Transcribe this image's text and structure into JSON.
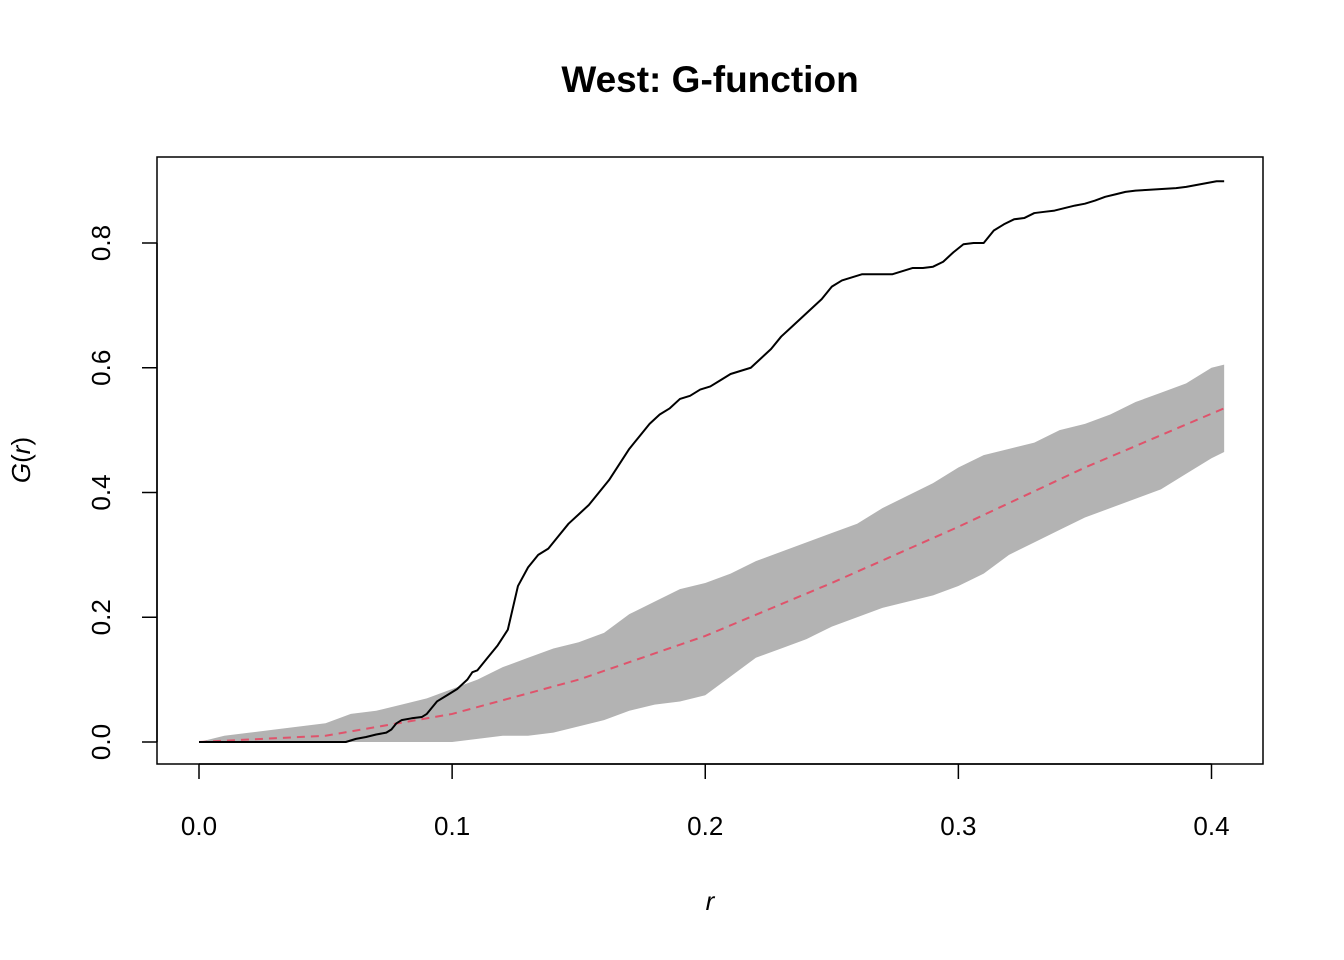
{
  "chart_data": {
    "type": "line",
    "title": "West: G-function",
    "xlabel": "r",
    "ylabel": "G(r)",
    "ylabel_parts": {
      "fn": "G",
      "open": "(",
      "arg": "r",
      "close": ")"
    },
    "xlim": [
      0,
      0.405
    ],
    "ylim": [
      0,
      0.9
    ],
    "xticks": [
      0.0,
      0.1,
      0.2,
      0.3,
      0.4
    ],
    "xtick_labels": [
      "0.0",
      "0.1",
      "0.2",
      "0.3",
      "0.4"
    ],
    "yticks": [
      0.0,
      0.2,
      0.4,
      0.6,
      0.8
    ],
    "ytick_labels": [
      "0.0",
      "0.2",
      "0.4",
      "0.6",
      "0.8"
    ],
    "grid": false,
    "legend": "none",
    "colors": {
      "observed": "#000000",
      "theoretical": "#DF536B",
      "envelope": "#B3B3B3",
      "axes": "#000000"
    },
    "series": [
      {
        "role": "observed",
        "style": "solid",
        "x": [
          0,
          0.02,
          0.04,
          0.058,
          0.062,
          0.066,
          0.07,
          0.074,
          0.076,
          0.078,
          0.08,
          0.084,
          0.088,
          0.09,
          0.094,
          0.098,
          0.102,
          0.106,
          0.108,
          0.11,
          0.114,
          0.118,
          0.122,
          0.126,
          0.13,
          0.134,
          0.138,
          0.142,
          0.146,
          0.15,
          0.154,
          0.158,
          0.162,
          0.166,
          0.17,
          0.174,
          0.178,
          0.182,
          0.186,
          0.19,
          0.194,
          0.198,
          0.202,
          0.206,
          0.21,
          0.214,
          0.218,
          0.222,
          0.226,
          0.23,
          0.234,
          0.238,
          0.242,
          0.246,
          0.25,
          0.254,
          0.258,
          0.262,
          0.266,
          0.27,
          0.274,
          0.278,
          0.282,
          0.286,
          0.29,
          0.294,
          0.298,
          0.302,
          0.306,
          0.31,
          0.314,
          0.318,
          0.322,
          0.326,
          0.33,
          0.334,
          0.338,
          0.342,
          0.346,
          0.35,
          0.354,
          0.358,
          0.362,
          0.366,
          0.37,
          0.374,
          0.378,
          0.382,
          0.386,
          0.39,
          0.394,
          0.398,
          0.402,
          0.405
        ],
        "y": [
          0,
          0,
          0,
          0,
          0.005,
          0.008,
          0.012,
          0.015,
          0.02,
          0.03,
          0.035,
          0.038,
          0.04,
          0.045,
          0.065,
          0.075,
          0.085,
          0.1,
          0.112,
          0.115,
          0.135,
          0.155,
          0.18,
          0.25,
          0.28,
          0.3,
          0.31,
          0.33,
          0.35,
          0.365,
          0.38,
          0.4,
          0.42,
          0.445,
          0.47,
          0.49,
          0.51,
          0.525,
          0.535,
          0.55,
          0.555,
          0.565,
          0.57,
          0.58,
          0.59,
          0.595,
          0.6,
          0.615,
          0.63,
          0.65,
          0.665,
          0.68,
          0.695,
          0.71,
          0.73,
          0.74,
          0.745,
          0.75,
          0.75,
          0.75,
          0.75,
          0.755,
          0.76,
          0.76,
          0.762,
          0.77,
          0.785,
          0.798,
          0.8,
          0.8,
          0.82,
          0.83,
          0.838,
          0.84,
          0.848,
          0.85,
          0.852,
          0.856,
          0.86,
          0.863,
          0.868,
          0.874,
          0.878,
          0.882,
          0.884,
          0.885,
          0.886,
          0.887,
          0.888,
          0.89,
          0.893,
          0.896,
          0.899,
          0.899
        ]
      },
      {
        "role": "theoretical",
        "style": "dashed",
        "x": [
          0,
          0.05,
          0.1,
          0.15,
          0.2,
          0.25,
          0.3,
          0.35,
          0.405
        ],
        "y": [
          0,
          0.01,
          0.045,
          0.1,
          0.17,
          0.255,
          0.345,
          0.44,
          0.535
        ]
      },
      {
        "role": "envelope",
        "style": "band",
        "x": [
          0,
          0.01,
          0.02,
          0.03,
          0.04,
          0.05,
          0.06,
          0.07,
          0.08,
          0.09,
          0.1,
          0.11,
          0.12,
          0.13,
          0.14,
          0.15,
          0.16,
          0.17,
          0.18,
          0.19,
          0.2,
          0.21,
          0.22,
          0.23,
          0.24,
          0.25,
          0.26,
          0.27,
          0.28,
          0.29,
          0.3,
          0.31,
          0.32,
          0.33,
          0.34,
          0.35,
          0.36,
          0.37,
          0.38,
          0.39,
          0.4,
          0.405
        ],
        "lower": [
          0,
          0,
          0,
          0,
          0,
          0,
          0,
          0,
          0,
          0,
          0,
          0.005,
          0.01,
          0.01,
          0.015,
          0.025,
          0.035,
          0.05,
          0.06,
          0.065,
          0.075,
          0.105,
          0.135,
          0.15,
          0.165,
          0.185,
          0.2,
          0.215,
          0.225,
          0.235,
          0.25,
          0.27,
          0.3,
          0.32,
          0.34,
          0.36,
          0.375,
          0.39,
          0.405,
          0.43,
          0.455,
          0.465
        ],
        "upper": [
          0,
          0.01,
          0.015,
          0.02,
          0.025,
          0.03,
          0.045,
          0.05,
          0.06,
          0.07,
          0.085,
          0.1,
          0.12,
          0.135,
          0.15,
          0.16,
          0.175,
          0.205,
          0.225,
          0.245,
          0.255,
          0.27,
          0.29,
          0.305,
          0.32,
          0.335,
          0.35,
          0.375,
          0.395,
          0.415,
          0.44,
          0.46,
          0.47,
          0.48,
          0.5,
          0.51,
          0.525,
          0.545,
          0.56,
          0.575,
          0.6,
          0.605
        ]
      }
    ]
  }
}
